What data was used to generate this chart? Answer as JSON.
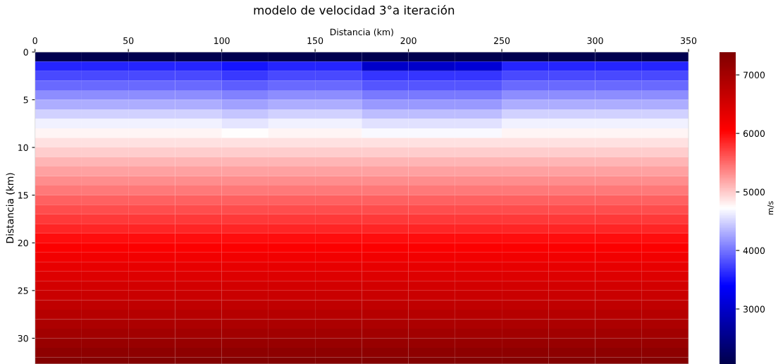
{
  "chart_data": {
    "type": "heatmap",
    "title": "modelo de velocidad 3°a iteración",
    "xlabel": "Distancia (km)",
    "ylabel": "Distancia (km)",
    "clabel": "m/s",
    "x": [
      12.5,
      37.5,
      62.5,
      87.5,
      112.5,
      137.5,
      162.5,
      187.5,
      212.5,
      237.5,
      262.5,
      287.5,
      312.5,
      337.5
    ],
    "y": [
      0.5,
      1.5,
      2.5,
      3.5,
      4.5,
      5.5,
      6.5,
      7.5,
      8.5,
      9.5,
      10.5,
      11.5,
      12.5,
      13.5,
      14.5,
      15.5,
      16.5,
      17.5,
      18.5,
      19.5,
      20.5,
      21.5,
      22.5,
      23.5,
      24.5,
      25.5,
      26.5,
      27.5,
      28.5,
      29.5,
      30.5,
      31.5,
      32.5
    ],
    "xlim": [
      0,
      350
    ],
    "xticks": [
      0,
      50,
      100,
      150,
      200,
      250,
      300,
      350
    ],
    "ylim": [
      32.7,
      0
    ],
    "yticks": [
      0,
      5,
      10,
      15,
      20,
      25,
      30
    ],
    "clim": [
      2060,
      7390
    ],
    "cticks": [
      3000,
      4000,
      5000,
      6000,
      7000
    ],
    "grid": false,
    "cells": [
      [
        2100,
        2100,
        2100,
        2100,
        2100,
        2100,
        2100,
        2100,
        2100,
        2100,
        2100,
        2100,
        2100,
        2100
      ],
      [
        3600,
        3600,
        3600,
        3600,
        3500,
        3600,
        3600,
        3000,
        3000,
        3100,
        3600,
        3600,
        3600,
        3600
      ],
      [
        3780,
        3780,
        3780,
        3780,
        3700,
        3780,
        3780,
        3680,
        3680,
        3680,
        3780,
        3780,
        3780,
        3780
      ],
      [
        3950,
        3950,
        3950,
        3950,
        3880,
        3950,
        3950,
        3850,
        3850,
        3850,
        3950,
        3950,
        3950,
        3950
      ],
      [
        4130,
        4130,
        4130,
        4130,
        4060,
        4130,
        4130,
        4030,
        4030,
        4030,
        4130,
        4130,
        4130,
        4130
      ],
      [
        4300,
        4300,
        4300,
        4300,
        4240,
        4300,
        4300,
        4200,
        4200,
        4200,
        4300,
        4300,
        4300,
        4300
      ],
      [
        4480,
        4480,
        4480,
        4480,
        4420,
        4480,
        4480,
        4380,
        4380,
        4380,
        4480,
        4480,
        4480,
        4480
      ],
      [
        4650,
        4650,
        4650,
        4650,
        4600,
        4650,
        4650,
        4560,
        4560,
        4560,
        4650,
        4650,
        4650,
        4650
      ],
      [
        4770,
        4770,
        4770,
        4770,
        4730,
        4770,
        4770,
        4700,
        4700,
        4700,
        4770,
        4770,
        4770,
        4770
      ],
      [
        4880,
        4880,
        4880,
        4880,
        4880,
        4880,
        4880,
        4880,
        4880,
        4880,
        4880,
        4880,
        4880,
        4880
      ],
      [
        4990,
        4990,
        4990,
        4990,
        4990,
        4990,
        4990,
        4990,
        4990,
        4990,
        4990,
        4990,
        4990,
        4990
      ],
      [
        5100,
        5100,
        5100,
        5100,
        5100,
        5100,
        5100,
        5100,
        5100,
        5100,
        5100,
        5100,
        5100,
        5100
      ],
      [
        5210,
        5210,
        5210,
        5210,
        5210,
        5210,
        5210,
        5210,
        5210,
        5210,
        5210,
        5210,
        5210,
        5210
      ],
      [
        5320,
        5320,
        5320,
        5320,
        5320,
        5320,
        5320,
        5320,
        5320,
        5320,
        5320,
        5320,
        5320,
        5320
      ],
      [
        5430,
        5430,
        5430,
        5430,
        5430,
        5430,
        5430,
        5430,
        5430,
        5430,
        5430,
        5430,
        5430,
        5430
      ],
      [
        5540,
        5540,
        5540,
        5540,
        5540,
        5540,
        5540,
        5540,
        5540,
        5540,
        5540,
        5540,
        5540,
        5540
      ],
      [
        5650,
        5650,
        5650,
        5650,
        5650,
        5650,
        5650,
        5650,
        5650,
        5650,
        5650,
        5650,
        5650,
        5650
      ],
      [
        5760,
        5760,
        5760,
        5760,
        5760,
        5760,
        5760,
        5760,
        5760,
        5760,
        5760,
        5760,
        5760,
        5760
      ],
      [
        5870,
        5870,
        5870,
        5870,
        5870,
        5870,
        5870,
        5870,
        5870,
        5870,
        5870,
        5870,
        5870,
        5870
      ],
      [
        5980,
        5980,
        5980,
        5980,
        5980,
        5980,
        5980,
        5980,
        5980,
        5980,
        5980,
        5980,
        5980,
        5980
      ],
      [
        6090,
        6090,
        6090,
        6090,
        6090,
        6090,
        6090,
        6090,
        6090,
        6090,
        6090,
        6090,
        6090,
        6090
      ],
      [
        6200,
        6200,
        6200,
        6200,
        6200,
        6200,
        6200,
        6200,
        6200,
        6200,
        6200,
        6200,
        6200,
        6200
      ],
      [
        6300,
        6300,
        6300,
        6300,
        6300,
        6300,
        6300,
        6300,
        6300,
        6300,
        6300,
        6300,
        6300,
        6300
      ],
      [
        6400,
        6400,
        6400,
        6400,
        6400,
        6400,
        6400,
        6400,
        6400,
        6400,
        6400,
        6400,
        6400,
        6400
      ],
      [
        6510,
        6510,
        6510,
        6510,
        6510,
        6510,
        6510,
        6510,
        6510,
        6510,
        6510,
        6510,
        6510,
        6510
      ],
      [
        6610,
        6610,
        6610,
        6610,
        6610,
        6610,
        6610,
        6610,
        6610,
        6610,
        6610,
        6610,
        6610,
        6610
      ],
      [
        6720,
        6720,
        6720,
        6720,
        6720,
        6720,
        6720,
        6720,
        6720,
        6720,
        6720,
        6720,
        6720,
        6720
      ],
      [
        6820,
        6820,
        6820,
        6820,
        6820,
        6820,
        6820,
        6820,
        6820,
        6820,
        6820,
        6820,
        6820,
        6820
      ],
      [
        6930,
        6930,
        6930,
        6930,
        6930,
        6930,
        6930,
        6930,
        6930,
        6930,
        6930,
        6930,
        6930,
        6930
      ],
      [
        7030,
        7030,
        7030,
        7030,
        7030,
        7030,
        7030,
        7030,
        7030,
        7030,
        7030,
        7030,
        7030,
        7030
      ],
      [
        7140,
        7140,
        7140,
        7140,
        7140,
        7140,
        7140,
        7140,
        7140,
        7140,
        7140,
        7140,
        7140,
        7140
      ],
      [
        7240,
        7240,
        7240,
        7240,
        7240,
        7240,
        7240,
        7240,
        7240,
        7240,
        7240,
        7240,
        7240,
        7240
      ],
      [
        7340,
        7340,
        7340,
        7340,
        7340,
        7340,
        7340,
        7340,
        7340,
        7340,
        7340,
        7340,
        7340,
        7340
      ]
    ]
  }
}
